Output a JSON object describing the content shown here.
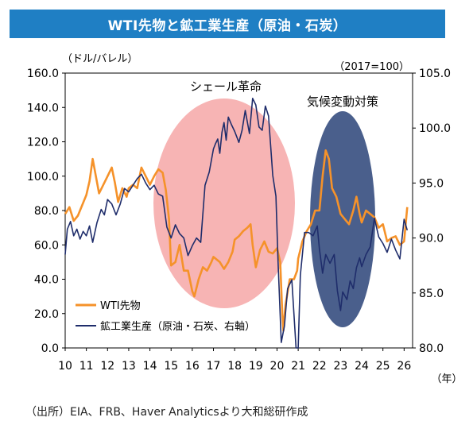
{
  "title": "WTI先物と鉱工業生産（原油・石炭）",
  "source": "（出所）EIA、FRB、Haver Analyticsより大和総研作成",
  "chart_data": {
    "type": "line",
    "left_unit": "（ドル/バレル）",
    "right_unit": "（2017=100）",
    "x_unit": "（年）",
    "x_ticks": [
      "10",
      "11",
      "12",
      "13",
      "14",
      "15",
      "16",
      "17",
      "18",
      "19",
      "20",
      "21",
      "22",
      "23",
      "24",
      "25",
      "26"
    ],
    "y_left_ticks": [
      "0.0",
      "20.0",
      "40.0",
      "60.0",
      "80.0",
      "100.0",
      "120.0",
      "140.0",
      "160.0"
    ],
    "y_right_ticks": [
      "80.0",
      "85.0",
      "90.0",
      "95.0",
      "100.0",
      "105.0"
    ],
    "ylim_left": [
      0,
      160
    ],
    "ylim_right": [
      80,
      105
    ],
    "xlim": [
      2010,
      2026.4
    ],
    "annotations": [
      {
        "text": "シェール革命",
        "x": 2017.7,
        "y_left": 152
      },
      {
        "text": "気候変動対策",
        "x": 2023.6,
        "y_left": 142
      }
    ],
    "highlight_colors": {
      "shale": "#f7b4b4",
      "climate": "#4a5f8c"
    },
    "colors": {
      "wti": "#f5922a",
      "ip": "#1f2d6b",
      "axis": "#000000"
    },
    "legend_position": "bottom-left",
    "series": [
      {
        "name": "WTI先物",
        "axis": "left",
        "points": [
          [
            2010.0,
            78
          ],
          [
            2010.2,
            82
          ],
          [
            2010.4,
            74
          ],
          [
            2010.6,
            77
          ],
          [
            2010.8,
            83
          ],
          [
            2011.0,
            89
          ],
          [
            2011.15,
            97
          ],
          [
            2011.3,
            110
          ],
          [
            2011.45,
            100
          ],
          [
            2011.6,
            90
          ],
          [
            2011.8,
            95
          ],
          [
            2012.0,
            100
          ],
          [
            2012.2,
            105
          ],
          [
            2012.35,
            96
          ],
          [
            2012.5,
            85
          ],
          [
            2012.7,
            93
          ],
          [
            2012.9,
            88
          ],
          [
            2013.0,
            93
          ],
          [
            2013.2,
            95
          ],
          [
            2013.4,
            93
          ],
          [
            2013.6,
            105
          ],
          [
            2013.8,
            100
          ],
          [
            2014.0,
            95
          ],
          [
            2014.2,
            100
          ],
          [
            2014.4,
            104
          ],
          [
            2014.6,
            102
          ],
          [
            2014.75,
            92
          ],
          [
            2014.9,
            75
          ],
          [
            2015.0,
            48
          ],
          [
            2015.2,
            50
          ],
          [
            2015.4,
            60
          ],
          [
            2015.6,
            45
          ],
          [
            2015.8,
            45
          ],
          [
            2016.0,
            33
          ],
          [
            2016.1,
            30
          ],
          [
            2016.3,
            40
          ],
          [
            2016.5,
            47
          ],
          [
            2016.7,
            45
          ],
          [
            2016.9,
            50
          ],
          [
            2017.0,
            53
          ],
          [
            2017.3,
            50
          ],
          [
            2017.5,
            46
          ],
          [
            2017.7,
            50
          ],
          [
            2017.9,
            56
          ],
          [
            2018.0,
            63
          ],
          [
            2018.2,
            65
          ],
          [
            2018.4,
            68
          ],
          [
            2018.6,
            70
          ],
          [
            2018.75,
            72
          ],
          [
            2018.85,
            60
          ],
          [
            2019.0,
            47
          ],
          [
            2019.2,
            57
          ],
          [
            2019.4,
            62
          ],
          [
            2019.6,
            56
          ],
          [
            2019.8,
            55
          ],
          [
            2020.0,
            58
          ],
          [
            2020.15,
            50
          ],
          [
            2020.25,
            20
          ],
          [
            2020.3,
            10
          ],
          [
            2020.4,
            25
          ],
          [
            2020.6,
            40
          ],
          [
            2020.8,
            40
          ],
          [
            2020.95,
            45
          ],
          [
            2021.0,
            52
          ],
          [
            2021.2,
            62
          ],
          [
            2021.4,
            68
          ],
          [
            2021.6,
            72
          ],
          [
            2021.8,
            80
          ],
          [
            2022.0,
            80
          ],
          [
            2022.15,
            100
          ],
          [
            2022.3,
            115
          ],
          [
            2022.45,
            110
          ],
          [
            2022.6,
            93
          ],
          [
            2022.8,
            88
          ],
          [
            2023.0,
            78
          ],
          [
            2023.2,
            75
          ],
          [
            2023.4,
            72
          ],
          [
            2023.6,
            80
          ],
          [
            2023.75,
            88
          ],
          [
            2023.9,
            78
          ],
          [
            2024.0,
            73
          ],
          [
            2024.2,
            80
          ],
          [
            2024.4,
            78
          ],
          [
            2024.6,
            76
          ],
          [
            2024.8,
            70
          ],
          [
            2025.0,
            72
          ],
          [
            2025.2,
            62
          ],
          [
            2025.4,
            64
          ],
          [
            2025.6,
            65
          ],
          [
            2025.8,
            60
          ],
          [
            2026.0,
            62
          ],
          [
            2026.15,
            82
          ]
        ]
      },
      {
        "name": "鉱工業生産（原油・石炭、右軸）",
        "axis": "right",
        "points": [
          [
            2010.0,
            88.5
          ],
          [
            2010.1,
            90.8
          ],
          [
            2010.25,
            91.5
          ],
          [
            2010.4,
            90.2
          ],
          [
            2010.55,
            90.8
          ],
          [
            2010.7,
            89.9
          ],
          [
            2010.85,
            90.6
          ],
          [
            2011.0,
            90.2
          ],
          [
            2011.15,
            91.1
          ],
          [
            2011.3,
            89.6
          ],
          [
            2011.5,
            91.4
          ],
          [
            2011.7,
            92.6
          ],
          [
            2011.85,
            92.1
          ],
          [
            2012.0,
            93.5
          ],
          [
            2012.2,
            93.1
          ],
          [
            2012.4,
            92.1
          ],
          [
            2012.6,
            93.1
          ],
          [
            2012.8,
            94.5
          ],
          [
            2013.0,
            94.2
          ],
          [
            2013.2,
            94.8
          ],
          [
            2013.4,
            95.4
          ],
          [
            2013.6,
            95.8
          ],
          [
            2013.8,
            95.0
          ],
          [
            2014.0,
            94.4
          ],
          [
            2014.2,
            94.8
          ],
          [
            2014.4,
            94.0
          ],
          [
            2014.6,
            93.8
          ],
          [
            2014.8,
            91.0
          ],
          [
            2015.0,
            90.0
          ],
          [
            2015.2,
            91.2
          ],
          [
            2015.4,
            90.4
          ],
          [
            2015.6,
            90.0
          ],
          [
            2015.8,
            88.4
          ],
          [
            2016.0,
            89.3
          ],
          [
            2016.2,
            90.0
          ],
          [
            2016.4,
            89.6
          ],
          [
            2016.6,
            94.8
          ],
          [
            2016.8,
            96.0
          ],
          [
            2017.0,
            98.1
          ],
          [
            2017.1,
            98.6
          ],
          [
            2017.2,
            99.0
          ],
          [
            2017.3,
            97.7
          ],
          [
            2017.4,
            99.6
          ],
          [
            2017.5,
            100.5
          ],
          [
            2017.6,
            98.9
          ],
          [
            2017.7,
            101.0
          ],
          [
            2017.85,
            100.3
          ],
          [
            2018.0,
            99.7
          ],
          [
            2018.2,
            98.7
          ],
          [
            2018.35,
            99.8
          ],
          [
            2018.5,
            101.6
          ],
          [
            2018.7,
            99.5
          ],
          [
            2018.85,
            102.7
          ],
          [
            2019.0,
            102.1
          ],
          [
            2019.15,
            100.1
          ],
          [
            2019.3,
            99.8
          ],
          [
            2019.45,
            102.0
          ],
          [
            2019.6,
            101.1
          ],
          [
            2019.8,
            95.7
          ],
          [
            2019.95,
            93.8
          ],
          [
            2020.05,
            87.8
          ],
          [
            2020.2,
            80.5
          ],
          [
            2020.35,
            82.0
          ],
          [
            2020.5,
            85.4
          ],
          [
            2020.7,
            86.2
          ],
          [
            2020.9,
            80.0
          ],
          [
            2021.0,
            80.0
          ],
          [
            2021.1,
            86.6
          ],
          [
            2021.3,
            90.5
          ],
          [
            2021.5,
            90.5
          ],
          [
            2021.7,
            90.2
          ],
          [
            2021.9,
            91.1
          ],
          [
            2022.0,
            89.0
          ],
          [
            2022.15,
            86.8
          ],
          [
            2022.3,
            88.5
          ],
          [
            2022.5,
            87.7
          ],
          [
            2022.7,
            88.5
          ],
          [
            2022.85,
            85.2
          ],
          [
            2023.0,
            83.4
          ],
          [
            2023.1,
            85.1
          ],
          [
            2023.3,
            84.4
          ],
          [
            2023.45,
            86.1
          ],
          [
            2023.6,
            85.4
          ],
          [
            2023.75,
            87.3
          ],
          [
            2023.9,
            88.2
          ],
          [
            2024.0,
            87.4
          ],
          [
            2024.2,
            88.5
          ],
          [
            2024.4,
            89.2
          ],
          [
            2024.6,
            91.8
          ],
          [
            2024.8,
            90.1
          ],
          [
            2025.0,
            89.5
          ],
          [
            2025.2,
            88.7
          ],
          [
            2025.4,
            89.9
          ],
          [
            2025.6,
            88.9
          ],
          [
            2025.8,
            88.1
          ],
          [
            2026.0,
            91.7
          ],
          [
            2026.15,
            90.7
          ]
        ]
      }
    ]
  }
}
